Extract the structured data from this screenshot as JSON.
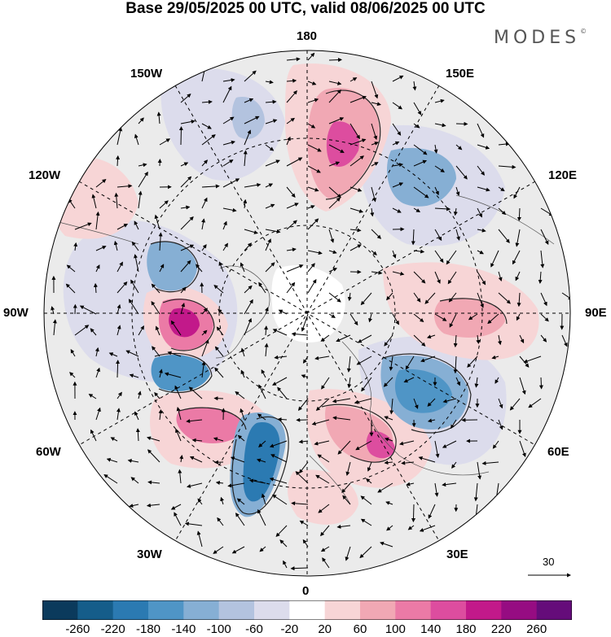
{
  "title": "Base 29/05/2025 00 UTC, valid 08/06/2025 00 UTC",
  "brand": "MODES",
  "brand_mark": "©",
  "longitude_labels": {
    "top": "180",
    "bottom": "0",
    "left": "90W",
    "right": "90E",
    "upper_left_1": "150W",
    "upper_left_2": "120W",
    "upper_right_1": "150E",
    "upper_right_2": "120E",
    "lower_left_1": "60W",
    "lower_left_2": "30W",
    "lower_right_1": "60E",
    "lower_right_2": "30E"
  },
  "reference_vector_label": "30",
  "colorbar": {
    "colors": [
      "#0b3a5c",
      "#155d8a",
      "#2b7ab2",
      "#4f95c6",
      "#86afd4",
      "#b3c3df",
      "#dcdcec",
      "#ffffff",
      "#f7d5d6",
      "#f1a8b4",
      "#eb7aa6",
      "#dd4d9f",
      "#c2198a",
      "#960c82",
      "#650c7a"
    ],
    "ticks": [
      "-260",
      "-220",
      "-180",
      "-140",
      "-100",
      "-60",
      "-20",
      "20",
      "60",
      "100",
      "140",
      "180",
      "220",
      "260"
    ]
  }
}
